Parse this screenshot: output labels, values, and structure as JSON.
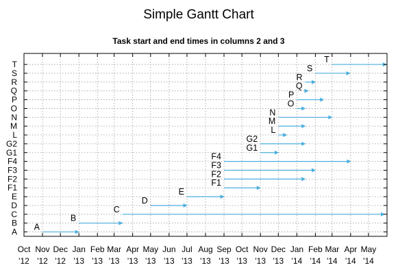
{
  "chart_data": {
    "type": "gantt",
    "title": "Simple Gantt Chart",
    "subtitle": "Task start and end times in columns 2 and 3",
    "xlabel": "",
    "ylabel": "",
    "grid": true,
    "bar_color": "#4aaedc",
    "x_range": [
      "2012-10-01",
      "2014-06-01"
    ],
    "x_ticks": [
      {
        "date": "2012-10-01",
        "label": [
          "Oct",
          "'12"
        ]
      },
      {
        "date": "2012-11-01",
        "label": [
          "Nov",
          "'12"
        ]
      },
      {
        "date": "2012-12-01",
        "label": [
          "Dec",
          "'12"
        ]
      },
      {
        "date": "2013-01-01",
        "label": [
          "Jan",
          "'13"
        ]
      },
      {
        "date": "2013-02-01",
        "label": [
          "Feb",
          "'13"
        ]
      },
      {
        "date": "2013-03-01",
        "label": [
          "Mar",
          "'13"
        ]
      },
      {
        "date": "2013-04-01",
        "label": [
          "Apr",
          "'13"
        ]
      },
      {
        "date": "2013-05-01",
        "label": [
          "May",
          "'13"
        ]
      },
      {
        "date": "2013-06-01",
        "label": [
          "Jun",
          "'13"
        ]
      },
      {
        "date": "2013-07-01",
        "label": [
          "Jul",
          "'13"
        ]
      },
      {
        "date": "2013-08-01",
        "label": [
          "Aug",
          "'13"
        ]
      },
      {
        "date": "2013-09-01",
        "label": [
          "Sep",
          "'13"
        ]
      },
      {
        "date": "2013-10-01",
        "label": [
          "Oct",
          "'13"
        ]
      },
      {
        "date": "2013-11-01",
        "label": [
          "Nov",
          "'13"
        ]
      },
      {
        "date": "2013-12-01",
        "label": [
          "Dec",
          "'13"
        ]
      },
      {
        "date": "2014-01-01",
        "label": [
          "Jan",
          "'14"
        ]
      },
      {
        "date": "2014-02-01",
        "label": [
          "Feb",
          "'14"
        ]
      },
      {
        "date": "2014-03-01",
        "label": [
          "Mar",
          "'14"
        ]
      },
      {
        "date": "2014-04-01",
        "label": [
          "Apr",
          "'14"
        ]
      },
      {
        "date": "2014-05-01",
        "label": [
          "May",
          "'14"
        ]
      }
    ],
    "tasks": [
      {
        "name": "A",
        "start": "2012-11-01",
        "end": "2013-01-01"
      },
      {
        "name": "B",
        "start": "2013-01-01",
        "end": "2013-03-15"
      },
      {
        "name": "C",
        "start": "2013-03-15",
        "end": "2014-05-28"
      },
      {
        "name": "D",
        "start": "2013-05-01",
        "end": "2013-07-01"
      },
      {
        "name": "E",
        "start": "2013-07-01",
        "end": "2013-09-01"
      },
      {
        "name": "F1",
        "start": "2013-09-01",
        "end": "2013-11-01"
      },
      {
        "name": "F2",
        "start": "2013-09-01",
        "end": "2014-01-15"
      },
      {
        "name": "F3",
        "start": "2013-09-01",
        "end": "2014-02-01"
      },
      {
        "name": "F4",
        "start": "2013-09-01",
        "end": "2014-04-01"
      },
      {
        "name": "G1",
        "start": "2013-11-01",
        "end": "2013-12-01"
      },
      {
        "name": "G2",
        "start": "2013-11-01",
        "end": "2014-01-15"
      },
      {
        "name": "L",
        "start": "2013-12-01",
        "end": "2013-12-15"
      },
      {
        "name": "M",
        "start": "2013-12-01",
        "end": "2014-01-15"
      },
      {
        "name": "N",
        "start": "2013-12-01",
        "end": "2014-03-01"
      },
      {
        "name": "O",
        "start": "2014-01-01",
        "end": "2014-01-15"
      },
      {
        "name": "P",
        "start": "2014-01-01",
        "end": "2014-02-15"
      },
      {
        "name": "Q",
        "start": "2014-01-15",
        "end": "2014-01-20"
      },
      {
        "name": "R",
        "start": "2014-01-15",
        "end": "2014-02-01"
      },
      {
        "name": "S",
        "start": "2014-02-01",
        "end": "2014-03-31"
      },
      {
        "name": "T",
        "start": "2014-03-01",
        "end": "2014-05-31"
      }
    ]
  }
}
